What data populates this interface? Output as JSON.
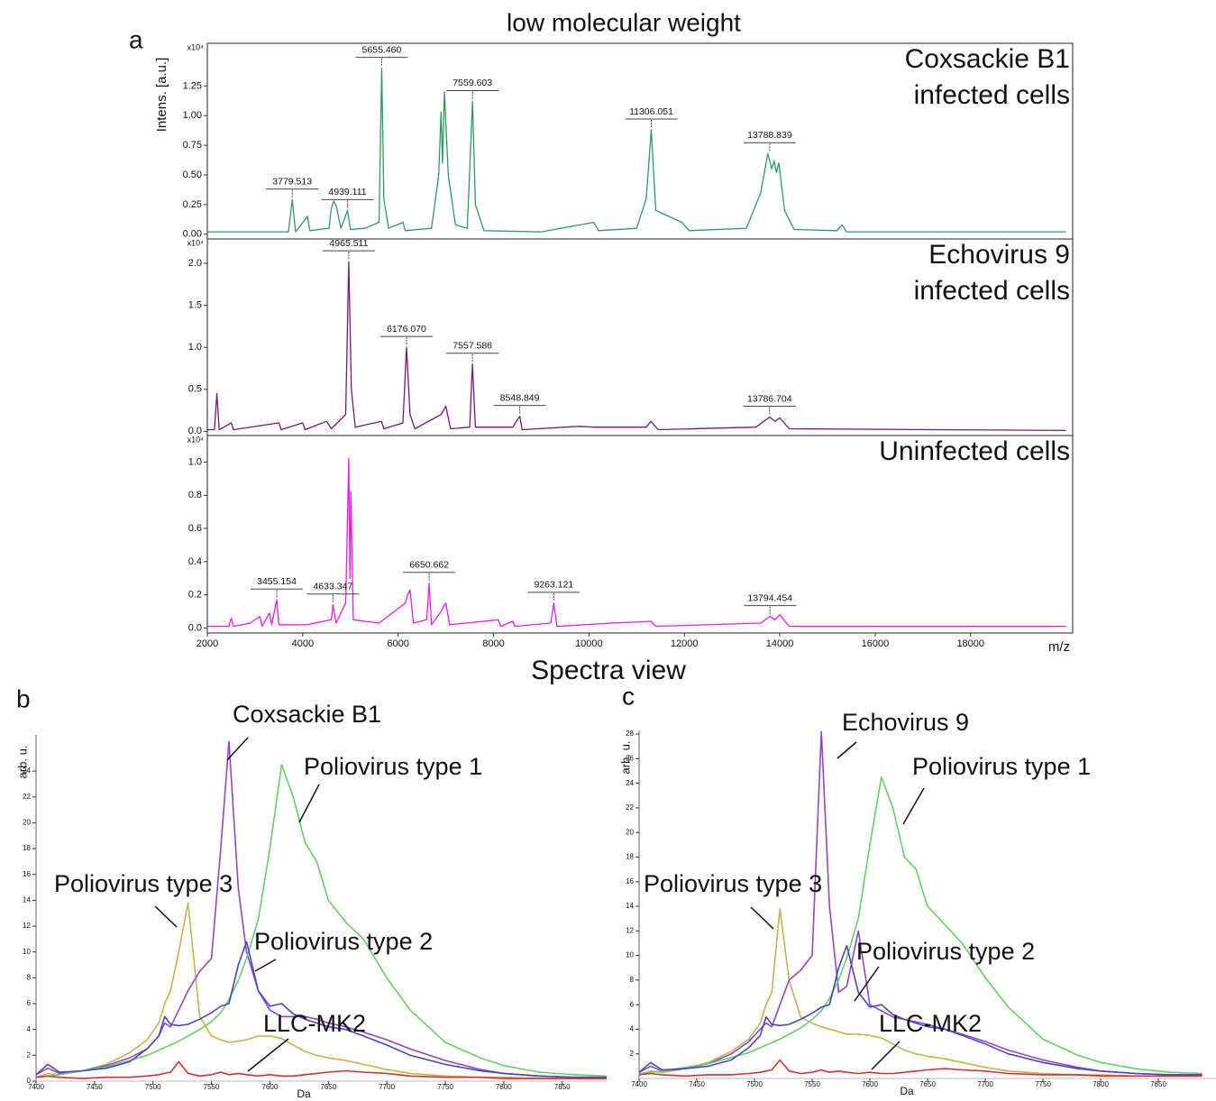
{
  "chart_data": [
    {
      "type": "line",
      "title": "low molecular weight",
      "panel_label": "a",
      "label": "Coxsackie B1\ninfected cells",
      "ylabel": "Intens. [a.u.]",
      "y_multiplier": "x10⁴",
      "color": "#2e9a62",
      "frame": true,
      "xlim": [
        2000,
        20140
      ],
      "ylim": [
        -0.04,
        1.61
      ],
      "yticks": [
        {
          "value": 0,
          "label": "0.00"
        },
        {
          "value": 0.25,
          "label": "0.25"
        },
        {
          "value": 0.5,
          "label": "0.50"
        },
        {
          "value": 0.75,
          "label": "0.75"
        },
        {
          "value": 1,
          "label": "1.00"
        },
        {
          "value": 1.25,
          "label": "1.25"
        }
      ],
      "x": [
        2000,
        2200,
        3000,
        3700,
        3779.513,
        3850,
        4100,
        4150,
        4550,
        4600,
        4650,
        4700,
        4800,
        4939.111,
        5000,
        5300,
        5600,
        5655.46,
        5700,
        5800,
        6100,
        6150,
        6700,
        6850,
        6900,
        6930,
        6970,
        7050,
        7200,
        7450,
        7559.603,
        7620,
        7700,
        7800,
        9000,
        10100,
        10200,
        11000,
        11200,
        11306.051,
        11400,
        11950,
        12100,
        13300,
        13600,
        13750,
        13830,
        13880,
        13930,
        13980,
        14100,
        14300,
        15200,
        15300,
        15400,
        20000
      ],
      "values": [
        0.02,
        0.02,
        0.02,
        0.02,
        0.29,
        0.02,
        0.15,
        0.03,
        0.05,
        0.22,
        0.28,
        0.24,
        0.05,
        0.2,
        0.04,
        0.05,
        0.1,
        1.4,
        0.3,
        0.05,
        0.1,
        0.03,
        0.05,
        0.5,
        1.03,
        0.6,
        1.2,
        0.5,
        0.08,
        0.05,
        1.12,
        0.25,
        0.15,
        0.03,
        0.02,
        0.1,
        0.03,
        0.05,
        0.3,
        0.88,
        0.2,
        0.1,
        0.03,
        0.05,
        0.35,
        0.68,
        0.55,
        0.62,
        0.52,
        0.6,
        0.2,
        0.04,
        0.03,
        0.08,
        0.02,
        0.02
      ],
      "annotations": [
        {
          "value": 3779.513,
          "label": "3779.513"
        },
        {
          "value": 4939.111,
          "label": "4939.111"
        },
        {
          "value": 5655.46,
          "label": "5655.460"
        },
        {
          "value": 7559.603,
          "label": "7559.603"
        },
        {
          "value": 11306.051,
          "label": "11306.051"
        },
        {
          "value": 13788.839,
          "label": "13788.839"
        }
      ]
    },
    {
      "type": "line",
      "label": "Echovirus 9\ninfected cells",
      "y_multiplier": "x10⁴",
      "color": "#7a167a",
      "frame": true,
      "xlim": [
        2000,
        20140
      ],
      "ylim": [
        -0.05,
        2.29
      ],
      "yticks": [
        {
          "value": 0,
          "label": "0.0"
        },
        {
          "value": 0.5,
          "label": "0.5"
        },
        {
          "value": 1,
          "label": "1.0"
        },
        {
          "value": 1.5,
          "label": "1.5"
        },
        {
          "value": 2,
          "label": "2.0"
        }
      ],
      "x": [
        2000,
        2150,
        2200,
        2250,
        2500,
        2550,
        3500,
        3550,
        4000,
        4050,
        4500,
        4600,
        4900,
        4965.511,
        5020,
        5100,
        5650,
        5700,
        6100,
        6176.07,
        6250,
        6350,
        6900,
        7000,
        7100,
        7500,
        7557.586,
        7620,
        8400,
        8548.849,
        8600,
        9800,
        10100,
        11200,
        11300,
        11450,
        13500,
        13786.704,
        13900,
        14000,
        14200,
        20000
      ],
      "values": [
        0.02,
        0.02,
        0.45,
        0.02,
        0.1,
        0.02,
        0.1,
        0.02,
        0.1,
        0.02,
        0.12,
        0.03,
        0.2,
        2.02,
        0.5,
        0.05,
        0.12,
        0.03,
        0.1,
        1.0,
        0.2,
        0.03,
        0.2,
        0.3,
        0.03,
        0.05,
        0.8,
        0.05,
        0.05,
        0.18,
        0.02,
        0.06,
        0.05,
        0.05,
        0.12,
        0.02,
        0.05,
        0.17,
        0.12,
        0.16,
        0.03,
        0.01
      ],
      "annotations": [
        {
          "value": 4965.511,
          "label": "4965.511"
        },
        {
          "value": 6176.07,
          "label": "6176.070"
        },
        {
          "value": 7557.586,
          "label": "7557.586"
        },
        {
          "value": 8548.849,
          "label": "8548.849"
        },
        {
          "value": 13786.704,
          "label": "13786.704"
        }
      ]
    },
    {
      "type": "line",
      "label": "Uninfected cells",
      "y_multiplier": "x10⁴",
      "caption": "Spectra view",
      "xlabel": "m/z",
      "color": "#ee18ee",
      "frame": true,
      "xlim": [
        2000,
        20140
      ],
      "ylim": [
        -0.03,
        1.16
      ],
      "xticks": [
        2000,
        4000,
        6000,
        8000,
        10000,
        12000,
        14000,
        16000,
        18000
      ],
      "yticks": [
        {
          "value": 0,
          "label": "0.0"
        },
        {
          "value": 0.2,
          "label": "0.2"
        },
        {
          "value": 0.4,
          "label": "0.4"
        },
        {
          "value": 0.6,
          "label": "0.6"
        },
        {
          "value": 0.8,
          "label": "0.8"
        },
        {
          "value": 1,
          "label": "1.0"
        }
      ],
      "x": [
        2000,
        2450,
        2500,
        2550,
        2900,
        3100,
        3150,
        3300,
        3350,
        3455.154,
        3500,
        4100,
        4600,
        4633.347,
        4700,
        4900,
        4965,
        4990,
        5010,
        5060,
        5600,
        6150,
        6200,
        6250,
        6320,
        6600,
        6650.662,
        6700,
        6900,
        6950,
        7000,
        7080,
        8100,
        8150,
        8400,
        8450,
        9200,
        9263.121,
        9330,
        10500,
        11300,
        11400,
        13600,
        13794.454,
        13900,
        14000,
        14200,
        20000
      ],
      "values": [
        0.01,
        0.01,
        0.06,
        0.01,
        0.03,
        0.07,
        0.01,
        0.09,
        0.02,
        0.17,
        0.02,
        0.02,
        0.05,
        0.14,
        0.03,
        0.15,
        1.02,
        0.3,
        0.82,
        0.05,
        0.03,
        0.15,
        0.2,
        0.23,
        0.03,
        0.05,
        0.27,
        0.02,
        0.1,
        0.13,
        0.15,
        0.02,
        0.05,
        0.01,
        0.04,
        0.01,
        0.03,
        0.15,
        0.01,
        0.03,
        0.04,
        0.01,
        0.03,
        0.07,
        0.05,
        0.08,
        0.01,
        0.01
      ],
      "annotations": [
        {
          "value": 3455.154,
          "label": "3455.154"
        },
        {
          "value": 4633.347,
          "label": "4633.347"
        },
        {
          "value": 6650.662,
          "label": "6650.662"
        },
        {
          "value": 9263.121,
          "label": "9263.121"
        },
        {
          "value": 13794.454,
          "label": "13794.454"
        }
      ]
    },
    {
      "type": "line",
      "panel_label": "b",
      "ylabel": "arb. u.",
      "xlabel": "Da",
      "xlim": [
        7400,
        7888
      ],
      "ylim": [
        0,
        26.8
      ],
      "xticks": [
        7400,
        7450,
        7500,
        7550,
        7600,
        7650,
        7700,
        7750,
        7800,
        7850
      ],
      "yticks": [
        0,
        2,
        4,
        6,
        8,
        10,
        12,
        14,
        16,
        18,
        20,
        22,
        24
      ],
      "x": [
        7400,
        7410,
        7420,
        7440,
        7460,
        7480,
        7495,
        7505,
        7510,
        7515,
        7522,
        7530,
        7540,
        7550,
        7558,
        7565,
        7573,
        7580,
        7590,
        7600,
        7610,
        7620,
        7630,
        7640,
        7650,
        7665,
        7680,
        7700,
        7720,
        7750,
        7780,
        7800,
        7830,
        7860,
        7888
      ],
      "series": [
        {
          "name": "Poliovirus type 3",
          "color": "#c4b44a",
          "values": [
            0.3,
            0.6,
            0.5,
            0.8,
            1.3,
            2.2,
            3.2,
            4.5,
            6,
            7,
            10,
            13.8,
            5,
            3.5,
            3.2,
            3,
            3.1,
            3.2,
            3.5,
            3.5,
            3.3,
            2.8,
            2.3,
            2,
            1.8,
            1.6,
            1.3,
            0.9,
            0.6,
            0.4,
            0.3,
            0.3,
            0.2,
            0.2,
            0.2
          ]
        },
        {
          "name": "Coxsackie B1",
          "color": "#9444c4",
          "values": [
            0.5,
            1.0,
            0.6,
            0.8,
            1.2,
            1.8,
            2.5,
            3.5,
            4.5,
            4.2,
            5.5,
            7,
            8.5,
            9.5,
            18,
            26.3,
            14.9,
            10,
            7,
            5.5,
            5,
            5,
            5,
            4.8,
            4.5,
            4.2,
            3.8,
            3.2,
            2.5,
            1.6,
            0.9,
            0.6,
            0.4,
            0.3,
            0.3
          ]
        },
        {
          "name": "Poliovirus type 1",
          "color": "#66d066",
          "values": [
            0.3,
            0.4,
            0.5,
            0.8,
            1.1,
            1.6,
            2,
            2.4,
            2.6,
            2.8,
            3.1,
            3.5,
            4,
            4.6,
            5.3,
            6.3,
            7.8,
            9.5,
            12.5,
            18,
            24.5,
            22,
            18.5,
            17,
            14,
            12.3,
            11,
            8,
            5.5,
            3,
            1.8,
            1.2,
            0.7,
            0.5,
            0.4
          ]
        },
        {
          "name": "Poliovirus type 2",
          "color": "#4646c8",
          "values": [
            0.5,
            1.3,
            0.7,
            0.8,
            1.0,
            1.5,
            2.5,
            3.5,
            5,
            4.4,
            4.3,
            4.4,
            4.8,
            5.3,
            5.8,
            6,
            9,
            10.8,
            7,
            5.8,
            6,
            5.2,
            4.8,
            4.5,
            4.2,
            4,
            3.5,
            2.8,
            2,
            1.3,
            0.8,
            0.6,
            0.4,
            0.3,
            0.3
          ]
        },
        {
          "name": "LLC-MK2",
          "color": "#d83030",
          "values": [
            0.3,
            0.4,
            0.3,
            0.2,
            0.3,
            0.3,
            0.4,
            0.5,
            0.6,
            0.7,
            1.5,
            0.6,
            0.4,
            0.5,
            0.7,
            0.5,
            0.6,
            0.5,
            0.4,
            0.5,
            0.4,
            0.4,
            0.5,
            0.6,
            0.7,
            0.8,
            0.7,
            0.6,
            0.4,
            0.3,
            0.3,
            0.2,
            0.2,
            0.2,
            0.2
          ]
        }
      ]
    },
    {
      "type": "line",
      "panel_label": "c",
      "ylabel": "arb. u.",
      "xlabel": "Da",
      "xlim": [
        7400,
        7900
      ],
      "ylim": [
        0,
        28.3
      ],
      "xticks": [
        7400,
        7450,
        7500,
        7550,
        7600,
        7650,
        7700,
        7750,
        7800,
        7850
      ],
      "yticks": [
        2,
        4,
        6,
        8,
        10,
        12,
        14,
        16,
        18,
        20,
        22,
        24,
        26,
        28
      ],
      "x": [
        7400,
        7410,
        7420,
        7440,
        7460,
        7480,
        7495,
        7505,
        7510,
        7515,
        7522,
        7530,
        7540,
        7550,
        7558,
        7565,
        7573,
        7580,
        7590,
        7600,
        7610,
        7620,
        7630,
        7640,
        7650,
        7665,
        7680,
        7700,
        7720,
        7750,
        7780,
        7800,
        7830,
        7860,
        7888
      ],
      "series": [
        {
          "name": "Poliovirus type 3",
          "color": "#c4b44a",
          "values": [
            0.3,
            0.6,
            0.5,
            0.8,
            1.3,
            2.2,
            3.2,
            4.5,
            6,
            7,
            13.8,
            8,
            5,
            4.5,
            4.2,
            4,
            3.8,
            3.6,
            3.6,
            3.5,
            3.3,
            2.8,
            2.3,
            2,
            1.8,
            1.6,
            1.3,
            0.9,
            0.6,
            0.4,
            0.3,
            0.3,
            0.2,
            0.2,
            0.2
          ]
        },
        {
          "name": "Echovirus 9",
          "color": "#9444c4",
          "values": [
            0.5,
            1.0,
            0.6,
            0.8,
            1.2,
            2,
            3,
            4,
            4.5,
            4.2,
            6,
            8,
            8.8,
            10,
            28.2,
            14,
            7,
            7.5,
            12,
            6,
            5.5,
            5,
            4.8,
            4.6,
            4.4,
            4,
            3.6,
            3,
            2.3,
            1.5,
            0.9,
            0.6,
            0.4,
            0.3,
            0.3
          ]
        },
        {
          "name": "Poliovirus type 1",
          "color": "#66d066",
          "values": [
            0.4,
            0.5,
            0.6,
            0.9,
            1.2,
            1.7,
            2.1,
            2.5,
            2.7,
            2.9,
            3.2,
            3.6,
            4.1,
            4.8,
            5.5,
            6.5,
            8,
            9.8,
            13,
            19,
            24.5,
            22,
            18,
            17,
            14,
            12.5,
            11,
            8.2,
            5.8,
            3.2,
            1.9,
            1.3,
            0.8,
            0.5,
            0.4
          ]
        },
        {
          "name": "Poliovirus type 2",
          "color": "#4646c8",
          "values": [
            0.5,
            1.3,
            0.7,
            0.8,
            1.0,
            1.5,
            2.5,
            3.5,
            5,
            4.4,
            4.3,
            4.4,
            4.8,
            5.3,
            5.8,
            6,
            9,
            10.8,
            7,
            5.8,
            6,
            5.2,
            4.8,
            4.5,
            4.2,
            4,
            3.5,
            2.8,
            2,
            1.3,
            0.8,
            0.6,
            0.4,
            0.3,
            0.3
          ]
        },
        {
          "name": "LLC-MK2",
          "color": "#d83030",
          "values": [
            0.3,
            0.4,
            0.3,
            0.2,
            0.3,
            0.3,
            0.4,
            0.5,
            0.6,
            0.7,
            1.5,
            0.6,
            0.4,
            0.5,
            0.7,
            0.5,
            0.6,
            0.5,
            0.4,
            0.5,
            0.4,
            0.4,
            0.5,
            0.6,
            0.7,
            0.8,
            0.7,
            0.6,
            0.4,
            0.3,
            0.3,
            0.2,
            0.2,
            0.2,
            0.2
          ]
        }
      ]
    }
  ]
}
